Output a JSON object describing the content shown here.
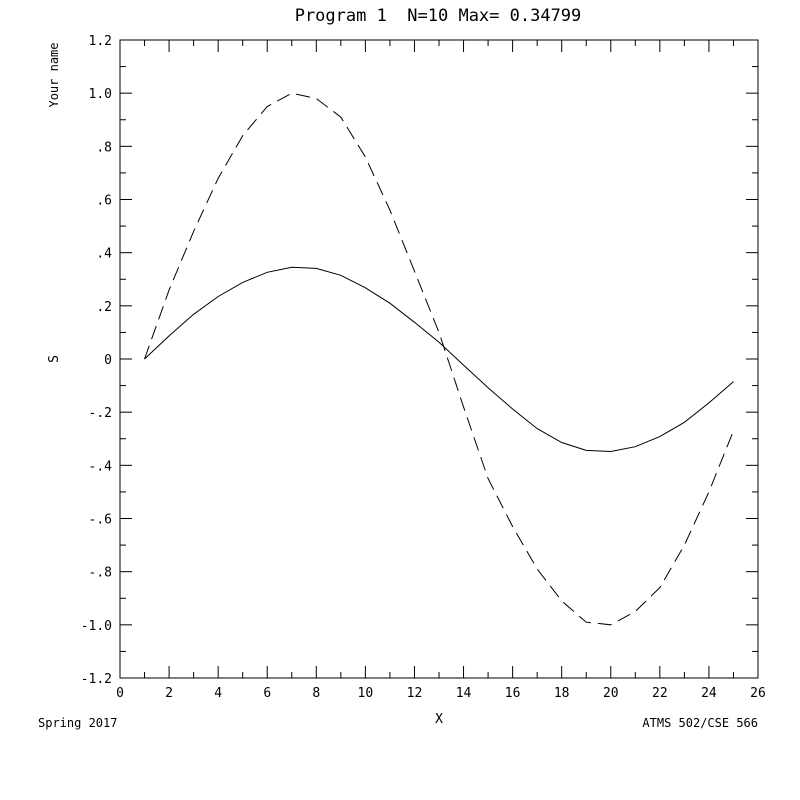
{
  "chart_data": {
    "type": "line",
    "title": "Program 1  N=10 Max= 0.34799",
    "xlabel": "X",
    "ylabel": "S",
    "ylabel_secondary": "Your name",
    "xlim": [
      0,
      26
    ],
    "ylim": [
      -1.2,
      1.2
    ],
    "grid": false,
    "legend": "none",
    "x_ticks": [
      0,
      2,
      4,
      6,
      8,
      10,
      12,
      14,
      16,
      18,
      20,
      22,
      24,
      26
    ],
    "x_tick_labels": [
      "0",
      "2",
      "4",
      "6",
      "8",
      "10",
      "12",
      "14",
      "16",
      "18",
      "20",
      "22",
      "24",
      "26"
    ],
    "y_ticks": [
      -1.2,
      -1.0,
      -0.8,
      -0.6,
      -0.4,
      -0.2,
      0,
      0.2,
      0.4,
      0.6,
      0.8,
      1.0,
      1.2
    ],
    "y_tick_labels": [
      "-1.2",
      "-1.0",
      "-.8",
      "-.6",
      "-.4",
      "-.2",
      "0",
      ".2",
      ".4",
      ".6",
      ".8",
      "1.0",
      "1.2"
    ],
    "series": [
      {
        "style": "solid",
        "x": [
          1,
          2,
          3,
          4,
          5,
          6,
          7,
          8,
          9,
          10,
          11,
          12,
          13,
          14,
          15,
          16,
          17,
          18,
          19,
          20,
          21,
          22,
          23,
          24,
          25
        ],
        "y": [
          0.0,
          0.087,
          0.168,
          0.235,
          0.288,
          0.326,
          0.345,
          0.341,
          0.315,
          0.268,
          0.21,
          0.138,
          0.063,
          -0.023,
          -0.108,
          -0.188,
          -0.262,
          -0.314,
          -0.344,
          -0.348,
          -0.33,
          -0.292,
          -0.238,
          -0.165,
          -0.085
        ]
      },
      {
        "style": "dashed",
        "x": [
          1,
          2,
          3,
          4,
          5,
          6,
          7,
          8,
          9,
          10,
          11,
          12,
          13,
          14,
          15,
          16,
          17,
          18,
          19,
          20,
          21,
          22,
          23,
          24,
          25
        ],
        "y": [
          0.0,
          0.26,
          0.48,
          0.68,
          0.84,
          0.95,
          1.0,
          0.98,
          0.91,
          0.76,
          0.56,
          0.33,
          0.1,
          -0.18,
          -0.45,
          -0.63,
          -0.79,
          -0.91,
          -0.99,
          -1.0,
          -0.95,
          -0.86,
          -0.7,
          -0.5,
          -0.27
        ]
      }
    ]
  },
  "footer": {
    "left": "Spring 2017",
    "right": "ATMS 502/CSE 566"
  }
}
